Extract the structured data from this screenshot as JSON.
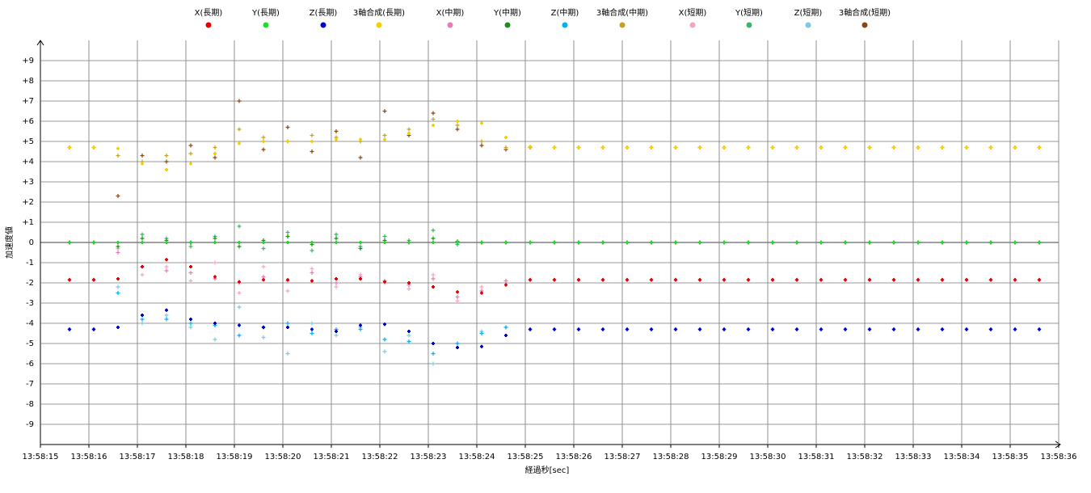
{
  "chart_data": {
    "type": "scatter",
    "x_label": "経過秒[sec]",
    "y_label": "加速度値",
    "xlim": [
      15,
      36
    ],
    "ylim": [
      -10,
      10
    ],
    "xticks": [
      {
        "value": 15,
        "label": "13:58:15"
      },
      {
        "value": 16,
        "label": "13:58:16"
      },
      {
        "value": 17,
        "label": "13:58:17"
      },
      {
        "value": 18,
        "label": "13:58:18"
      },
      {
        "value": 19,
        "label": "13:58:19"
      },
      {
        "value": 20,
        "label": "13:58:20"
      },
      {
        "value": 21,
        "label": "13:58:21"
      },
      {
        "value": 22,
        "label": "13:58:22"
      },
      {
        "value": 23,
        "label": "13:58:23"
      },
      {
        "value": 24,
        "label": "13:58:24"
      },
      {
        "value": 25,
        "label": "13:58:25"
      },
      {
        "value": 26,
        "label": "13:58:26"
      },
      {
        "value": 27,
        "label": "13:58:27"
      },
      {
        "value": 28,
        "label": "13:58:28"
      },
      {
        "value": 29,
        "label": "13:58:29"
      },
      {
        "value": 30,
        "label": "13:58:30"
      },
      {
        "value": 31,
        "label": "13:58:31"
      },
      {
        "value": 32,
        "label": "13:58:32"
      },
      {
        "value": 33,
        "label": "13:58:33"
      },
      {
        "value": 34,
        "label": "13:58:34"
      },
      {
        "value": 35,
        "label": "13:58:35"
      },
      {
        "value": 36,
        "label": "13:58:36"
      }
    ],
    "yticks": [
      {
        "value": 9,
        "label": "+9"
      },
      {
        "value": 8,
        "label": "+8"
      },
      {
        "value": 7,
        "label": "+7"
      },
      {
        "value": 6,
        "label": "+6"
      },
      {
        "value": 5,
        "label": "+5"
      },
      {
        "value": 4,
        "label": "+4"
      },
      {
        "value": 3,
        "label": "+3"
      },
      {
        "value": 2,
        "label": "+2"
      },
      {
        "value": 1,
        "label": "+1"
      },
      0,
      -1,
      -2,
      -3,
      -4,
      -5,
      -6,
      -7,
      -8,
      -9
    ],
    "grid": true,
    "x": [
      15.6,
      16.1,
      16.6,
      17.1,
      17.6,
      18.1,
      18.6,
      19.1,
      19.6,
      20.1,
      20.6,
      21.1,
      21.6,
      22.1,
      22.6,
      23.1,
      23.6,
      24.1,
      24.6,
      25.1,
      25.6,
      26.1,
      26.6,
      27.1,
      27.6,
      28.1,
      28.6,
      29.1,
      29.6,
      30.1,
      30.6,
      31.1,
      31.6,
      32.1,
      32.6,
      33.1,
      33.6,
      34.1,
      34.6,
      35.1,
      35.6
    ],
    "series": [
      {
        "name": "X(長期)",
        "color": "#e60000",
        "values": [
          -1.85,
          -1.85,
          -1.8,
          -1.2,
          -0.85,
          -1.2,
          -1.7,
          -1.95,
          -1.85,
          -1.85,
          -1.9,
          -1.8,
          -1.8,
          -1.95,
          -2.0,
          -2.2,
          -2.45,
          -2.5,
          -2.1,
          -1.85,
          -1.85,
          -1.85,
          -1.85,
          -1.85,
          -1.85,
          -1.85,
          -1.85,
          -1.85,
          -1.85,
          -1.85,
          -1.85,
          -1.85,
          -1.85,
          -1.85,
          -1.85,
          -1.85,
          -1.85,
          -1.85,
          -1.85,
          -1.85,
          -1.85
        ]
      },
      {
        "name": "Y(長期)",
        "color": "#22dd22",
        "values": [
          0,
          0,
          0,
          0,
          0,
          0,
          0,
          0,
          0,
          0,
          0,
          0,
          0,
          0,
          0,
          0,
          0,
          0,
          0,
          0,
          0,
          0,
          0,
          0,
          0,
          0,
          0,
          0,
          0,
          0,
          0,
          0,
          0,
          0,
          0,
          0,
          0,
          0,
          0,
          0,
          0
        ]
      },
      {
        "name": "Z(長期)",
        "color": "#0000cc",
        "values": [
          -4.3,
          -4.3,
          -4.2,
          -3.6,
          -3.35,
          -3.8,
          -4.0,
          -4.1,
          -4.2,
          -4.2,
          -4.3,
          -4.4,
          -4.1,
          -4.05,
          -4.4,
          -5.0,
          -5.2,
          -5.15,
          -4.6,
          -4.3,
          -4.3,
          -4.3,
          -4.3,
          -4.3,
          -4.3,
          -4.3,
          -4.3,
          -4.3,
          -4.3,
          -4.3,
          -4.3,
          -4.3,
          -4.3,
          -4.3,
          -4.3,
          -4.3,
          -4.3,
          -4.3,
          -4.3,
          -4.3,
          -4.3
        ]
      },
      {
        "name": "3軸合成(長期)",
        "color": "#f5d000",
        "values": [
          4.7,
          4.7,
          4.65,
          3.9,
          3.6,
          3.9,
          4.4,
          4.9,
          5.0,
          5.0,
          5.0,
          5.1,
          5.1,
          5.1,
          5.4,
          5.8,
          6.0,
          5.9,
          5.2,
          4.75,
          4.7,
          4.7,
          4.7,
          4.7,
          4.7,
          4.7,
          4.7,
          4.7,
          4.7,
          4.7,
          4.7,
          4.7,
          4.7,
          4.7,
          4.7,
          4.7,
          4.7,
          4.7,
          4.7,
          4.7,
          4.7
        ]
      },
      {
        "name": "X(中期)",
        "color": "#e87ab5",
        "values": [
          -1.85,
          -1.85,
          -0.5,
          -1.2,
          -1.4,
          -1.5,
          -1.8,
          -2.0,
          -1.7,
          -1.9,
          -1.5,
          -2.0,
          -1.7,
          -1.9,
          -2.1,
          -1.8,
          -2.7,
          -2.4,
          -1.9,
          -1.85,
          -1.85,
          -1.85,
          -1.85,
          -1.85,
          -1.85,
          -1.85,
          -1.85,
          -1.85,
          -1.85,
          -1.85,
          -1.85,
          -1.85,
          -1.85,
          -1.85,
          -1.85,
          -1.85,
          -1.85,
          -1.85,
          -1.85,
          -1.85,
          -1.85
        ]
      },
      {
        "name": "Y(中期)",
        "color": "#228b22",
        "values": [
          0,
          0,
          -0.2,
          0.2,
          0.1,
          0,
          0.2,
          -0.2,
          0.1,
          0.3,
          -0.1,
          0.2,
          -0.3,
          0.1,
          0,
          0.2,
          0.05,
          0,
          0,
          0,
          0,
          0,
          0,
          0,
          0,
          0,
          0,
          0,
          0,
          0,
          0,
          0,
          0,
          0,
          0,
          0,
          0,
          0,
          0,
          0,
          0
        ]
      },
      {
        "name": "Z(中期)",
        "color": "#00b0f0",
        "values": [
          -4.3,
          -4.3,
          -2.5,
          -3.8,
          -3.8,
          -4.0,
          -4.1,
          -4.6,
          -4.2,
          -4.0,
          -4.5,
          -4.3,
          -4.3,
          -4.8,
          -4.9,
          -5.5,
          -5.0,
          -4.5,
          -4.2,
          -4.3,
          -4.3,
          -4.3,
          -4.3,
          -4.3,
          -4.3,
          -4.3,
          -4.3,
          -4.3,
          -4.3,
          -4.3,
          -4.3,
          -4.3,
          -4.3,
          -4.3,
          -4.3,
          -4.3,
          -4.3,
          -4.3,
          -4.3,
          -4.3,
          -4.3
        ]
      },
      {
        "name": "3軸合成(中期)",
        "color": "#c8a020",
        "values": [
          4.7,
          4.7,
          4.3,
          4.0,
          4.3,
          4.4,
          4.7,
          5.6,
          5.2,
          5.0,
          5.3,
          5.2,
          5.0,
          5.3,
          5.6,
          6.1,
          5.8,
          5.0,
          4.7,
          4.7,
          4.7,
          4.7,
          4.7,
          4.7,
          4.7,
          4.7,
          4.7,
          4.7,
          4.7,
          4.7,
          4.7,
          4.7,
          4.7,
          4.7,
          4.7,
          4.7,
          4.7,
          4.7,
          4.7,
          4.7,
          4.7
        ]
      },
      {
        "name": "X(短期)",
        "color": "#f4a6c0",
        "values": [
          -1.85,
          -1.85,
          -0.3,
          -1.6,
          -1.2,
          -1.9,
          -1.0,
          -2.5,
          -1.2,
          -2.4,
          -1.3,
          -2.2,
          -1.6,
          -2.0,
          -2.3,
          -1.6,
          -2.9,
          -2.2,
          -1.9,
          -1.85,
          -1.85,
          -1.85,
          -1.85,
          -1.85,
          -1.85,
          -1.85,
          -1.85,
          -1.85,
          -1.85,
          -1.85,
          -1.85,
          -1.85,
          -1.85,
          -1.85,
          -1.85,
          -1.85,
          -1.85,
          -1.85,
          -1.85,
          -1.85,
          -1.85
        ]
      },
      {
        "name": "Y(短期)",
        "color": "#3cb371",
        "values": [
          0,
          0,
          -0.3,
          0.4,
          0.2,
          -0.2,
          0.3,
          0.8,
          -0.3,
          0.5,
          -0.4,
          0.4,
          -0.2,
          0.3,
          0.1,
          0.6,
          -0.1,
          0,
          0,
          0,
          0,
          0,
          0,
          0,
          0,
          0,
          0,
          0,
          0,
          0,
          0,
          0,
          0,
          0,
          0,
          0,
          0,
          0,
          0,
          0,
          0
        ]
      },
      {
        "name": "Z(短期)",
        "color": "#7ec8e3",
        "values": [
          -4.3,
          -4.3,
          -2.2,
          -4.0,
          -3.6,
          -4.2,
          -4.8,
          -3.2,
          -4.7,
          -5.5,
          -4.0,
          -4.6,
          -4.2,
          -5.4,
          -4.6,
          -6.0,
          -5.0,
          -4.4,
          -4.2,
          -4.3,
          -4.3,
          -4.3,
          -4.3,
          -4.3,
          -4.3,
          -4.3,
          -4.3,
          -4.3,
          -4.3,
          -4.3,
          -4.3,
          -4.3,
          -4.3,
          -4.3,
          -4.3,
          -4.3,
          -4.3,
          -4.3,
          -4.3,
          -4.3,
          -4.3
        ]
      },
      {
        "name": "3軸合成(短期)",
        "color": "#8b4513",
        "values": [
          4.7,
          4.7,
          2.3,
          4.3,
          4.0,
          4.8,
          4.2,
          7.0,
          4.6,
          5.7,
          4.5,
          5.5,
          4.2,
          6.5,
          5.3,
          6.4,
          5.6,
          4.8,
          4.6,
          4.7,
          4.7,
          4.7,
          4.7,
          4.7,
          4.7,
          4.7,
          4.7,
          4.7,
          4.7,
          4.7,
          4.7,
          4.7,
          4.7,
          4.7,
          4.7,
          4.7,
          4.7,
          4.7,
          4.7,
          4.7,
          4.7
        ]
      }
    ]
  }
}
